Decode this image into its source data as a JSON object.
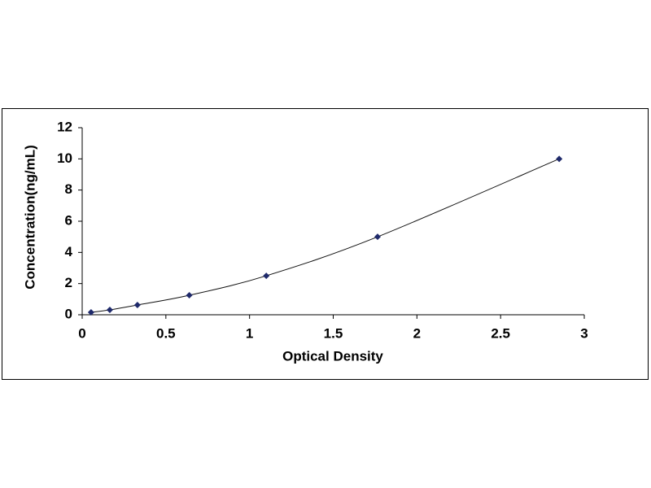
{
  "chart_data": {
    "type": "scatter",
    "x_label": "Optical Density",
    "y_label": "Concentration(ng/mL)",
    "series": [
      {
        "color": "#1f2a6b",
        "x": [
          0.053,
          0.165,
          0.33,
          0.64,
          1.1,
          1.765,
          2.85
        ],
        "values": [
          0.156,
          0.312,
          0.625,
          1.25,
          2.5,
          5,
          10
        ]
      }
    ],
    "xlim": [
      0,
      3
    ],
    "xticks": [
      0,
      0.5,
      1,
      1.5,
      2,
      2.5,
      3
    ],
    "ylim": [
      0,
      12
    ],
    "yticks": [
      0,
      2,
      4,
      6,
      8,
      10,
      12
    ],
    "grid": false
  }
}
